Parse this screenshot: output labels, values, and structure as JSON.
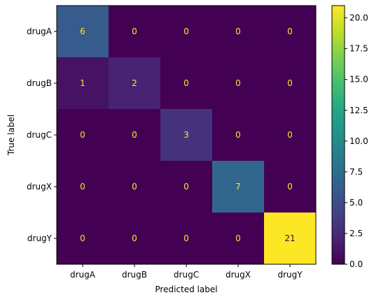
{
  "chart_data": {
    "type": "heatmap",
    "title": "",
    "xlabel": "Predicted label",
    "ylabel": "True label",
    "x_categories": [
      "drugA",
      "drugB",
      "drugC",
      "drugX",
      "drugY"
    ],
    "y_categories": [
      "drugA",
      "drugB",
      "drugC",
      "drugX",
      "drugY"
    ],
    "values": [
      [
        6,
        0,
        0,
        0,
        0
      ],
      [
        1,
        2,
        0,
        0,
        0
      ],
      [
        0,
        0,
        3,
        0,
        0
      ],
      [
        0,
        0,
        0,
        7,
        0
      ],
      [
        0,
        0,
        0,
        0,
        21
      ]
    ],
    "colormap": "viridis",
    "vmin": 0,
    "vmax": 21,
    "colorbar_ticks": [
      "0.0",
      "2.5",
      "5.0",
      "7.5",
      "10.0",
      "12.5",
      "15.0",
      "17.5",
      "20.0"
    ],
    "text_colors": {
      "light": "#fde725",
      "dark": "#440154"
    }
  }
}
